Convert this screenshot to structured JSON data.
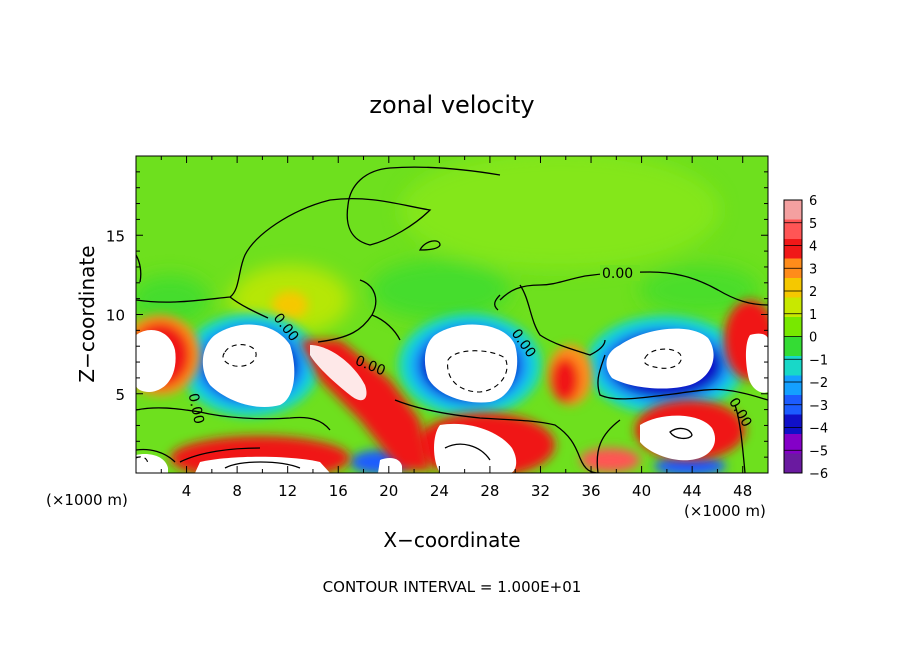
{
  "chart_data": {
    "type": "heatmap",
    "title": "zonal velocity",
    "xlabel": "X−coordinate",
    "ylabel": "Z−coordinate",
    "x_unit": "(×1000 m)",
    "z_unit": "(×1000 m)",
    "footer": "CONTOUR INTERVAL = 1.000E+01",
    "xlim": [
      0,
      50
    ],
    "ylim": [
      0,
      20
    ],
    "x_ticks": [
      "4",
      "8",
      "12",
      "16",
      "20",
      "24",
      "28",
      "32",
      "36",
      "40",
      "44",
      "48"
    ],
    "y_ticks": [
      "5",
      "10",
      "15"
    ],
    "colorbar": {
      "levels": [
        "6",
        "5",
        "4",
        "3",
        "2",
        "1",
        "0",
        "−1",
        "−2",
        "−3",
        "−4",
        "−5",
        "−6"
      ],
      "colors": [
        "#f4a0a0",
        "#ff5555",
        "#f01818",
        "#ff8c1a",
        "#f5c800",
        "#c8e800",
        "#78e800",
        "#34dc34",
        "#18d8c8",
        "#14a0ff",
        "#1c5cff",
        "#1010c8",
        "#8400c8",
        "#6a1aa0"
      ]
    },
    "contour_labels": [
      "0.00",
      "0.00",
      "0.00",
      "0.00",
      "0.00"
    ],
    "colors": {
      "background_field": "#6ee01e",
      "strong_positive": "#ff2a1a",
      "strong_negative": "#1a1ad8",
      "saturated": "#ffffff"
    }
  }
}
